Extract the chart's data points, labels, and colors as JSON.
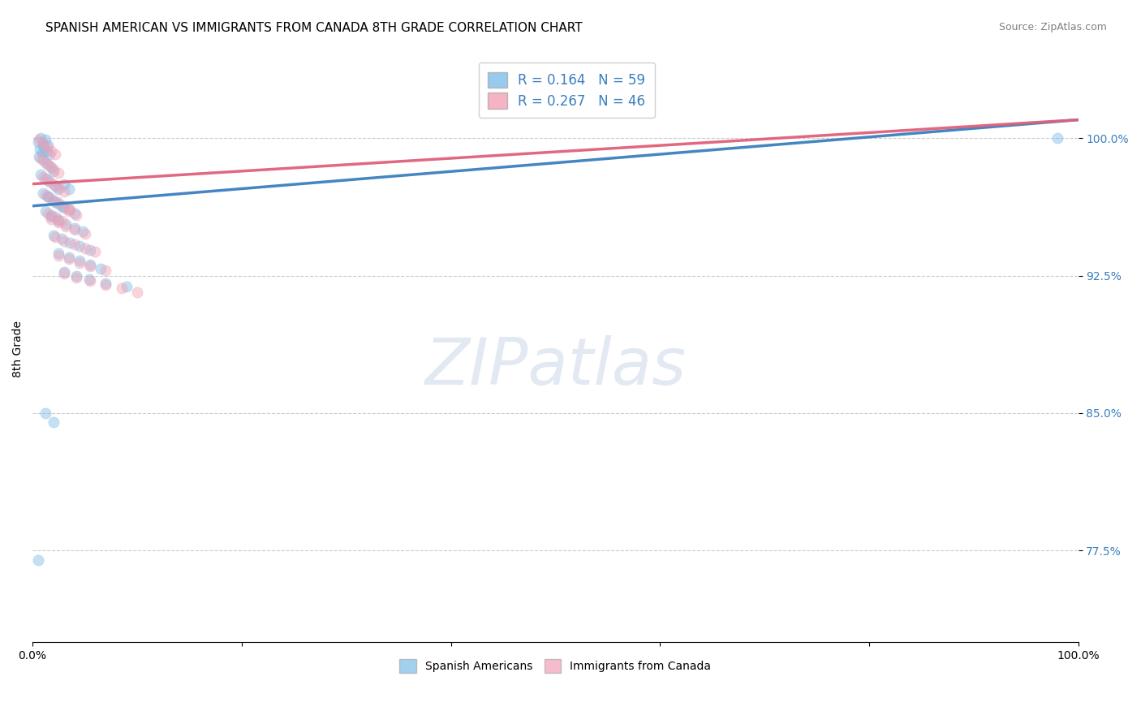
{
  "title": "SPANISH AMERICAN VS IMMIGRANTS FROM CANADA 8TH GRADE CORRELATION CHART",
  "source": "Source: ZipAtlas.com",
  "ylabel": "8th Grade",
  "xlim": [
    0.0,
    1.0
  ],
  "ylim": [
    0.725,
    1.045
  ],
  "yticks": [
    0.775,
    0.85,
    0.925,
    1.0
  ],
  "ytick_labels": [
    "77.5%",
    "85.0%",
    "92.5%",
    "100.0%"
  ],
  "xticks": [
    0.0,
    0.2,
    0.4,
    0.6,
    0.8,
    1.0
  ],
  "xtick_labels": [
    "0.0%",
    "",
    "",
    "",
    "",
    "100.0%"
  ],
  "legend_label1": "Spanish Americans",
  "legend_label2": "Immigrants from Canada",
  "R1": 0.164,
  "N1": 59,
  "R2": 0.267,
  "N2": 46,
  "color1": "#7dbde8",
  "color2": "#f4a0b5",
  "trendline_color1": "#3a7fbf",
  "trendline_color2": "#e0607a",
  "trendline1_start_y": 0.963,
  "trendline1_end_y": 1.01,
  "trendline2_start_y": 0.975,
  "trendline2_end_y": 1.01,
  "scatter1_x": [
    0.005,
    0.008,
    0.01,
    0.012,
    0.015,
    0.007,
    0.009,
    0.011,
    0.013,
    0.016,
    0.006,
    0.01,
    0.014,
    0.018,
    0.02,
    0.008,
    0.012,
    0.016,
    0.022,
    0.025,
    0.01,
    0.015,
    0.02,
    0.025,
    0.03,
    0.012,
    0.018,
    0.024,
    0.03,
    0.035,
    0.015,
    0.022,
    0.028,
    0.035,
    0.04,
    0.018,
    0.025,
    0.032,
    0.04,
    0.048,
    0.02,
    0.028,
    0.036,
    0.045,
    0.055,
    0.025,
    0.035,
    0.045,
    0.055,
    0.065,
    0.03,
    0.042,
    0.054,
    0.07,
    0.09,
    0.012,
    0.02,
    0.005,
    0.98
  ],
  "scatter1_y": [
    0.998,
    1.0,
    0.997,
    0.999,
    0.996,
    0.994,
    0.992,
    0.995,
    0.993,
    0.991,
    0.99,
    0.988,
    0.986,
    0.984,
    0.982,
    0.98,
    0.978,
    0.976,
    0.974,
    0.972,
    0.97,
    0.968,
    0.966,
    0.964,
    0.962,
    0.96,
    0.958,
    0.956,
    0.975,
    0.972,
    0.968,
    0.965,
    0.963,
    0.961,
    0.959,
    0.957,
    0.955,
    0.953,
    0.951,
    0.949,
    0.947,
    0.945,
    0.943,
    0.941,
    0.939,
    0.937,
    0.935,
    0.933,
    0.931,
    0.929,
    0.927,
    0.925,
    0.923,
    0.921,
    0.919,
    0.85,
    0.845,
    0.77,
    1.0
  ],
  "scatter2_x": [
    0.006,
    0.01,
    0.014,
    0.018,
    0.022,
    0.008,
    0.012,
    0.016,
    0.02,
    0.025,
    0.01,
    0.015,
    0.02,
    0.025,
    0.03,
    0.012,
    0.018,
    0.024,
    0.03,
    0.036,
    0.015,
    0.022,
    0.028,
    0.035,
    0.042,
    0.018,
    0.025,
    0.032,
    0.04,
    0.05,
    0.022,
    0.03,
    0.04,
    0.05,
    0.06,
    0.025,
    0.035,
    0.045,
    0.055,
    0.07,
    0.03,
    0.042,
    0.055,
    0.07,
    0.085,
    0.1
  ],
  "scatter2_y": [
    0.999,
    0.997,
    0.995,
    0.993,
    0.991,
    0.989,
    0.987,
    0.985,
    0.983,
    0.981,
    0.979,
    0.977,
    0.975,
    0.973,
    0.971,
    0.969,
    0.967,
    0.965,
    0.963,
    0.961,
    0.959,
    0.957,
    0.955,
    0.96,
    0.958,
    0.956,
    0.954,
    0.952,
    0.95,
    0.948,
    0.946,
    0.944,
    0.942,
    0.94,
    0.938,
    0.936,
    0.934,
    0.932,
    0.93,
    0.928,
    0.926,
    0.924,
    0.922,
    0.92,
    0.918,
    0.916
  ],
  "background_color": "#ffffff",
  "grid_color": "#cccccc",
  "title_fontsize": 11,
  "axis_label_fontsize": 10,
  "tick_fontsize": 10,
  "legend_fontsize": 12,
  "source_fontsize": 9,
  "marker_size": 90,
  "alpha": 0.45
}
